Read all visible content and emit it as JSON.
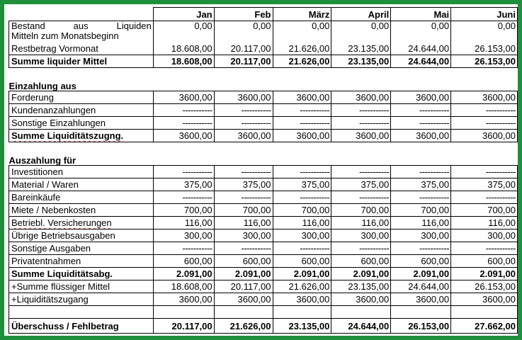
{
  "months": [
    "Jan",
    "Feb",
    "März",
    "April",
    "Mai",
    "Juni"
  ],
  "bestand": {
    "label_line1": [
      "Bestand",
      "aus",
      "Liquiden"
    ],
    "label_line2": "Mitteln zum Monatsbeginn",
    "values": [
      "0,00",
      "0,00",
      "0,00",
      "0,00",
      "0,00",
      "0,00"
    ]
  },
  "restbetrag": {
    "label": "Restbetrag Vormonat",
    "values": [
      "18.608,00",
      "20.117,00",
      "21.626,00",
      "23.135,00",
      "24.644,00",
      "26.153,00"
    ]
  },
  "summe_liquider": {
    "label": "Summe liquider Mittel",
    "values": [
      "18.608,00",
      "20.117,00",
      "21.626,00",
      "23.135,00",
      "24.644,00",
      "26.153,00"
    ]
  },
  "einzahlung_heading": "Einzahlung aus",
  "einzahlung_rows": [
    {
      "label": "Forderung",
      "values": [
        "3600,00",
        "3600,00",
        "3600,00",
        "3600,00",
        "3600,00",
        "3600,00"
      ]
    },
    {
      "label": "Kundenanzahlungen",
      "values": [
        "-----------",
        "-----------",
        "-----------",
        "-----------",
        "-----------",
        "-----------"
      ]
    },
    {
      "label": "Sonstige Einzahlungen",
      "values": [
        "-----------",
        "-----------",
        "-----------",
        "-----------",
        "-----------",
        "-----------"
      ]
    }
  ],
  "summe_liquiditaetszugng": {
    "label": "Summe Liquiditätszugng.",
    "values": [
      "3600,00",
      "3600,00",
      "3600,00",
      "3600,00",
      "3600,00",
      "3600,00"
    ]
  },
  "auszahlung_heading": "Auszahlung für",
  "auszahlung_rows": [
    {
      "label": "Investitionen",
      "values": [
        "-----------",
        "-----------",
        "-----------",
        "-----------",
        "-----------",
        "-----------"
      ]
    },
    {
      "label": "Material / Waren",
      "values": [
        "375,00",
        "375,00",
        "375,00",
        "375,00",
        "375,00",
        "375,00"
      ]
    },
    {
      "label": "Bareinkäufe",
      "values": [
        "-----------",
        "-----------",
        "-----------",
        "-----------",
        "-----------",
        "-----------"
      ]
    },
    {
      "label": "Miete / Nebenkosten",
      "values": [
        "700,00",
        "700,00",
        "700,00",
        "700,00",
        "700,00",
        "700,00"
      ]
    },
    {
      "label": "Betriebl. Versicherungen",
      "values": [
        "116,00",
        "116,00",
        "116,00",
        "116,00",
        "116,00",
        "116,00"
      ]
    },
    {
      "label": "Übrige Betriebsausgaben",
      "values": [
        "300,00",
        "300,00",
        "300,00",
        "300,00",
        "300,00",
        "300,00"
      ]
    },
    {
      "label": "Sonstige Ausgaben",
      "values": [
        "-----------",
        "-----------",
        "-----------",
        "-----------",
        "-----------",
        "-----------"
      ]
    },
    {
      "label": "Privatentnahmen",
      "values": [
        "600,00",
        "600,00",
        "600,00",
        "600,00",
        "600,00",
        "600,00"
      ]
    }
  ],
  "summe_liquiditaetsabg": {
    "label": "Summe Liquiditätsabg.",
    "values": [
      "2.091,00",
      "2.091,00",
      "2.091,00",
      "2.091,00",
      "2.091,00",
      "2.091,00"
    ]
  },
  "plus_summe_fluessiger": {
    "label": "+Summe flüssiger Mittel",
    "values": [
      "18.608,00",
      "20.117,00",
      "21.626,00",
      "23.135,00",
      "24.644,00",
      "26.153,00"
    ]
  },
  "plus_liquiditaetszugang": {
    "label": "+Liquiditätszugang",
    "values": [
      "3600,00",
      "3600,00",
      "3600,00",
      "3600,00",
      "3600,00",
      "3600,00"
    ]
  },
  "ueberschuss": {
    "label": "Überschuss / Fehlbetrag",
    "values": [
      "20.117,00",
      "21.626,00",
      "23.135,00",
      "24.644,00",
      "26.153,00",
      "27.662,00"
    ]
  },
  "colors": {
    "frame": "#1f8f3c",
    "background": "#ffffff",
    "text": "#000000",
    "spellcheck_underline": "#d22222"
  }
}
